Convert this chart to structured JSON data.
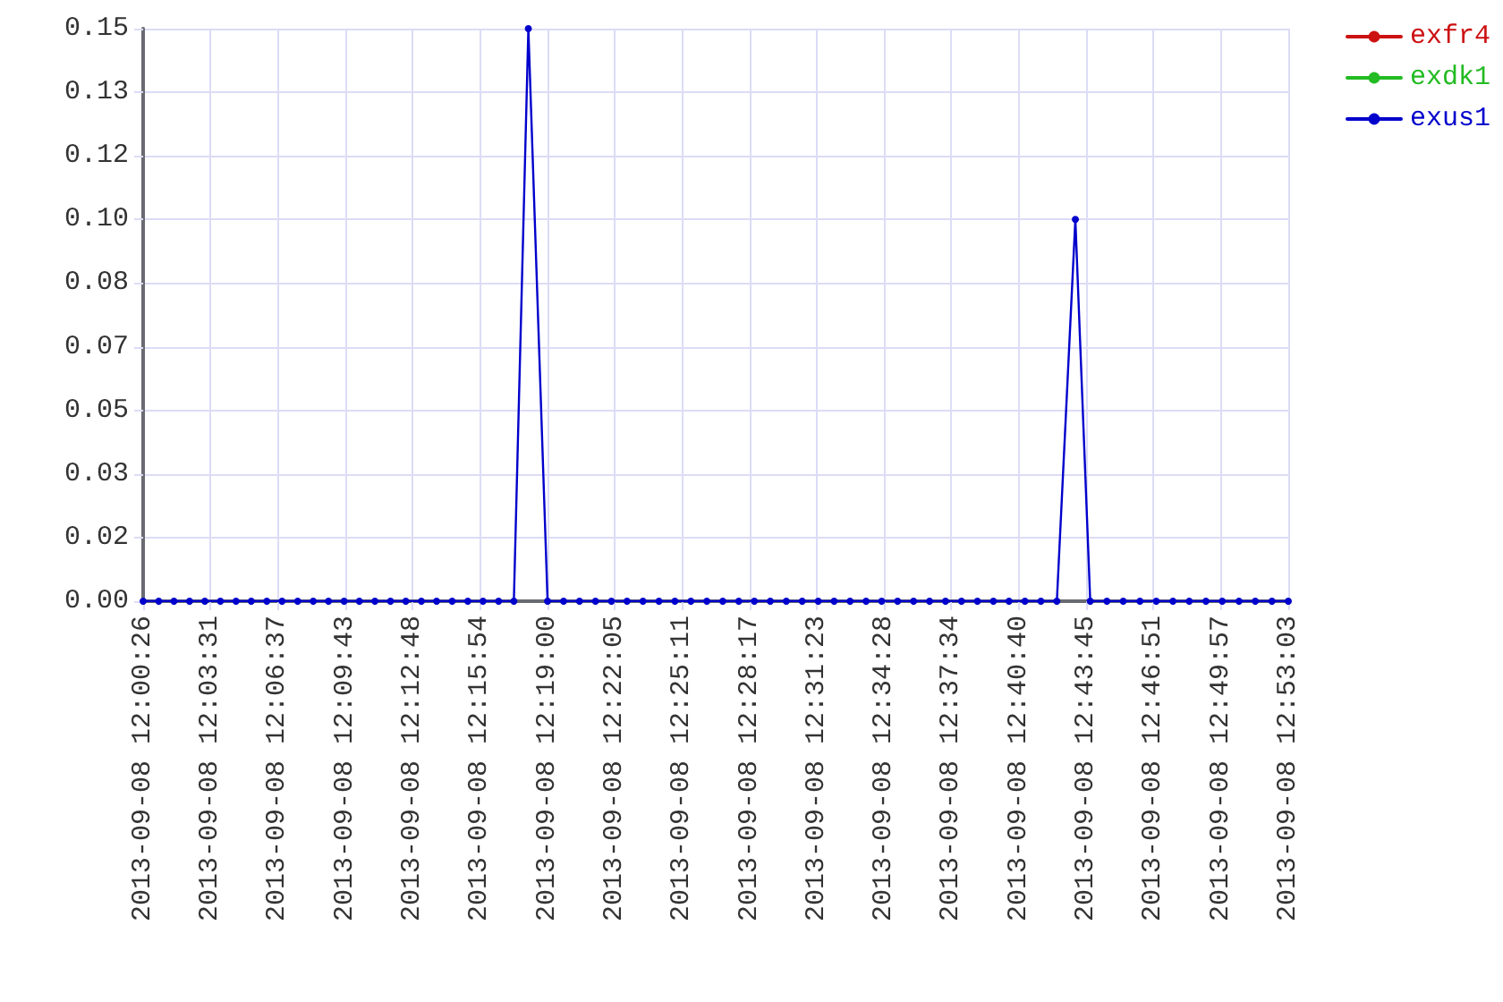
{
  "chart_data": {
    "type": "line",
    "x": [
      "2013-09-08T12:00:26",
      "2013-09-08T12:01:09",
      "2013-09-08T12:01:51",
      "2013-09-08T12:02:34",
      "2013-09-08T12:03:16",
      "2013-09-08T12:03:59",
      "2013-09-08T12:04:42",
      "2013-09-08T12:05:24",
      "2013-09-08T12:06:07",
      "2013-09-08T12:06:49",
      "2013-09-08T12:07:32",
      "2013-09-08T12:08:15",
      "2013-09-08T12:08:57",
      "2013-09-08T12:09:40",
      "2013-09-08T12:10:22",
      "2013-09-08T12:11:05",
      "2013-09-08T12:11:48",
      "2013-09-08T12:12:30",
      "2013-09-08T12:13:13",
      "2013-09-08T12:13:55",
      "2013-09-08T12:14:38",
      "2013-09-08T12:15:21",
      "2013-09-08T12:16:03",
      "2013-09-08T12:16:46",
      "2013-09-08T12:17:28",
      "2013-09-08T12:18:08",
      "2013-09-08T12:19:01",
      "2013-09-08T12:19:45",
      "2013-09-08T12:20:29",
      "2013-09-08T12:21:13",
      "2013-09-08T12:21:57",
      "2013-09-08T12:22:40",
      "2013-09-08T12:23:24",
      "2013-09-08T12:24:08",
      "2013-09-08T12:24:52",
      "2013-09-08T12:25:36",
      "2013-09-08T12:26:20",
      "2013-09-08T12:27:04",
      "2013-09-08T12:27:48",
      "2013-09-08T12:28:31",
      "2013-09-08T12:29:15",
      "2013-09-08T12:29:59",
      "2013-09-08T12:30:43",
      "2013-09-08T12:31:27",
      "2013-09-08T12:32:11",
      "2013-09-08T12:32:55",
      "2013-09-08T12:33:39",
      "2013-09-08T12:34:22",
      "2013-09-08T12:35:06",
      "2013-09-08T12:35:50",
      "2013-09-08T12:36:34",
      "2013-09-08T12:37:18",
      "2013-09-08T12:38:02",
      "2013-09-08T12:38:46",
      "2013-09-08T12:39:30",
      "2013-09-08T12:40:13",
      "2013-09-08T12:40:57",
      "2013-09-08T12:41:41",
      "2013-09-08T12:42:25",
      "2013-09-08T12:43:16",
      "2013-09-08T12:43:57",
      "2013-09-08T12:44:43",
      "2013-09-08T12:45:28",
      "2013-09-08T12:46:14",
      "2013-09-08T12:46:59",
      "2013-09-08T12:47:45",
      "2013-09-08T12:48:30",
      "2013-09-08T12:49:16",
      "2013-09-08T12:50:01",
      "2013-09-08T12:50:47",
      "2013-09-08T12:51:32",
      "2013-09-08T12:52:18",
      "2013-09-08T12:53:03"
    ],
    "series": [
      {
        "name": "exfr4",
        "color": "#cc1111",
        "values": [
          null,
          null,
          null,
          null,
          null,
          null,
          null,
          null,
          null,
          null,
          null,
          null,
          null,
          null,
          null,
          null,
          null,
          null,
          null,
          null,
          null,
          null,
          null,
          null,
          null,
          null,
          null,
          null,
          null,
          null,
          null,
          null,
          null,
          null,
          null,
          null,
          null,
          null,
          null,
          null,
          null,
          null,
          null,
          null,
          null,
          null,
          null,
          null,
          null,
          null,
          null,
          null,
          null,
          null,
          null,
          null,
          null,
          null,
          null,
          null,
          null,
          null,
          null,
          null,
          null,
          null,
          null,
          null,
          null,
          null,
          null,
          null,
          null
        ]
      },
      {
        "name": "exdk1",
        "color": "#22bb22",
        "values": [
          null,
          null,
          null,
          null,
          null,
          null,
          null,
          null,
          null,
          null,
          null,
          null,
          null,
          null,
          null,
          null,
          null,
          null,
          null,
          null,
          null,
          null,
          null,
          null,
          null,
          null,
          null,
          null,
          null,
          null,
          null,
          null,
          null,
          null,
          null,
          null,
          null,
          null,
          null,
          null,
          null,
          null,
          null,
          null,
          null,
          null,
          null,
          null,
          null,
          null,
          null,
          null,
          null,
          null,
          null,
          null,
          null,
          null,
          null,
          null,
          null,
          null,
          null,
          null,
          null,
          null,
          null,
          null,
          null,
          null,
          null,
          null,
          null
        ]
      },
      {
        "name": "exus1",
        "color": "#0000cc",
        "values": [
          0,
          0,
          0,
          0,
          0,
          0,
          0,
          0,
          0,
          0,
          0,
          0,
          0,
          0,
          0,
          0,
          0,
          0,
          0,
          0,
          0,
          0,
          0,
          0,
          0,
          0.15,
          0,
          0,
          0,
          0,
          0,
          0,
          0,
          0,
          0,
          0,
          0,
          0,
          0,
          0,
          0,
          0,
          0,
          0,
          0,
          0,
          0,
          0,
          0,
          0,
          0,
          0,
          0,
          0,
          0,
          0,
          0,
          0,
          0,
          0.1,
          0,
          0,
          0,
          0,
          0,
          0,
          0,
          0,
          0,
          0,
          0,
          0,
          0
        ]
      }
    ],
    "xlim": [
      "2013-09-08T12:00:26",
      "2013-09-08T12:53:03"
    ],
    "xticks": [
      {
        "value": "2013-09-08T12:00:26",
        "label": "2013-09-08 12:00:26"
      },
      {
        "value": "2013-09-08T12:03:31",
        "label": "2013-09-08 12:03:31"
      },
      {
        "value": "2013-09-08T12:06:37",
        "label": "2013-09-08 12:06:37"
      },
      {
        "value": "2013-09-08T12:09:43",
        "label": "2013-09-08 12:09:43"
      },
      {
        "value": "2013-09-08T12:12:48",
        "label": "2013-09-08 12:12:48"
      },
      {
        "value": "2013-09-08T12:15:54",
        "label": "2013-09-08 12:15:54"
      },
      {
        "value": "2013-09-08T12:19:00",
        "label": "2013-09-08 12:19:00"
      },
      {
        "value": "2013-09-08T12:22:05",
        "label": "2013-09-08 12:22:05"
      },
      {
        "value": "2013-09-08T12:25:11",
        "label": "2013-09-08 12:25:11"
      },
      {
        "value": "2013-09-08T12:28:17",
        "label": "2013-09-08 12:28:17"
      },
      {
        "value": "2013-09-08T12:31:23",
        "label": "2013-09-08 12:31:23"
      },
      {
        "value": "2013-09-08T12:34:28",
        "label": "2013-09-08 12:34:28"
      },
      {
        "value": "2013-09-08T12:37:34",
        "label": "2013-09-08 12:37:34"
      },
      {
        "value": "2013-09-08T12:40:40",
        "label": "2013-09-08 12:40:40"
      },
      {
        "value": "2013-09-08T12:43:45",
        "label": "2013-09-08 12:43:45"
      },
      {
        "value": "2013-09-08T12:46:51",
        "label": "2013-09-08 12:46:51"
      },
      {
        "value": "2013-09-08T12:49:57",
        "label": "2013-09-08 12:49:57"
      },
      {
        "value": "2013-09-08T12:53:03",
        "label": "2013-09-08 12:53:03"
      }
    ],
    "ylim": [
      0,
      0.15
    ],
    "yticks": [
      {
        "value": 0,
        "label": "0.00"
      },
      {
        "value": 0.016667,
        "label": "0.02"
      },
      {
        "value": 0.033333,
        "label": "0.03"
      },
      {
        "value": 0.05,
        "label": "0.05"
      },
      {
        "value": 0.066667,
        "label": "0.07"
      },
      {
        "value": 0.083333,
        "label": "0.08"
      },
      {
        "value": 0.1,
        "label": "0.10"
      },
      {
        "value": 0.116667,
        "label": "0.12"
      },
      {
        "value": 0.133333,
        "label": "0.13"
      },
      {
        "value": 0.15,
        "label": "0.15"
      }
    ],
    "grid": true,
    "legend": "top right",
    "marker": "circle",
    "line_style": "solid"
  }
}
